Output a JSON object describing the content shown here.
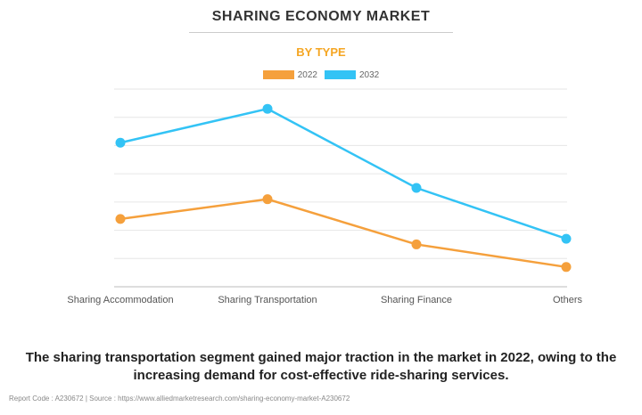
{
  "chart_data": {
    "type": "line",
    "title": "SHARING ECONOMY MARKET",
    "subtitle": "BY TYPE",
    "categories": [
      "Sharing Accommodation",
      "Sharing Transportation",
      "Sharing Finance",
      "Others"
    ],
    "series": [
      {
        "name": "2022",
        "color": "#f5a03c",
        "values": [
          2.4,
          3.1,
          1.5,
          0.7
        ]
      },
      {
        "name": "2032",
        "color": "#33c3f5",
        "values": [
          5.1,
          6.3,
          3.5,
          1.7
        ]
      }
    ],
    "ylim": [
      0,
      7
    ],
    "y_ticks_shown": false,
    "grid": true,
    "legend": "top-center"
  },
  "caption": "The sharing transportation segment gained major traction in the market in 2022, owing to the increasing demand for cost-effective ride-sharing services.",
  "footer": "Report Code : A230672  |  Source : https://www.alliedmarketresearch.com/sharing-economy-market-A230672"
}
